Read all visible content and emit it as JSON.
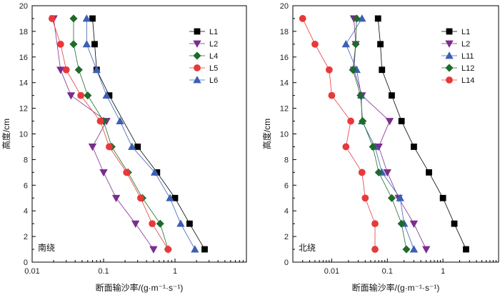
{
  "chart_data": [
    {
      "type": "scatter",
      "panel_label": "南绕",
      "xlabel": "断面输沙率/(g·m⁻¹·s⁻¹)",
      "ylabel": "高度/cm",
      "xscale": "log",
      "xlim": [
        0.01,
        10
      ],
      "ylim": [
        0,
        20
      ],
      "xticks": [
        0.01,
        0.1,
        1
      ],
      "xtick_labels": [
        "0.01",
        "0.1",
        "1"
      ],
      "yticks": [
        0,
        2,
        4,
        6,
        8,
        10,
        12,
        14,
        16,
        18,
        20
      ],
      "ytick_labels": [
        "0",
        "2",
        "4",
        "6",
        "8",
        "10",
        "12",
        "14",
        "16",
        "18",
        "20"
      ],
      "legend_position": "top-right",
      "series": [
        {
          "name": "L1",
          "color": "#000000",
          "marker": "square",
          "x": [
            2.6,
            1.6,
            1.0,
            0.56,
            0.3,
            0.12,
            0.08,
            0.075,
            0.07
          ],
          "y": [
            1,
            3,
            5,
            7,
            9,
            13,
            15,
            17,
            19
          ]
        },
        {
          "name": "L2",
          "color": "#7b2d8e",
          "marker": "triangle-down",
          "x": [
            0.5,
            0.28,
            0.15,
            0.1,
            0.07,
            0.11,
            0.035,
            0.025,
            0.02
          ],
          "y": [
            1,
            3,
            5,
            7,
            9,
            11,
            13,
            15,
            19
          ]
        },
        {
          "name": "L4",
          "color": "#1f6b2a",
          "marker": "diamond",
          "x": [
            0.8,
            0.62,
            0.35,
            0.22,
            0.13,
            0.1,
            0.06,
            0.045,
            0.038,
            0.038
          ],
          "y": [
            1,
            3,
            5,
            7,
            9,
            11,
            13,
            15,
            17,
            19
          ]
        },
        {
          "name": "L5",
          "color": "#e8393a",
          "marker": "circle",
          "x": [
            0.8,
            0.48,
            0.33,
            0.21,
            0.12,
            0.09,
            0.048,
            0.03,
            0.025,
            0.019
          ],
          "y": [
            1,
            3,
            5,
            7,
            9,
            11,
            13,
            15,
            17,
            19
          ]
        },
        {
          "name": "L6",
          "color": "#3c5fb3",
          "marker": "triangle-up",
          "x": [
            1.9,
            1.2,
            0.85,
            0.52,
            0.25,
            0.17,
            0.11,
            0.08,
            0.058,
            0.058
          ],
          "y": [
            1,
            3,
            5,
            7,
            9,
            11,
            13,
            15,
            17,
            19
          ]
        }
      ]
    },
    {
      "type": "scatter",
      "panel_label": "北绕",
      "xlabel": "断面输沙率/(g·m⁻¹·s⁻¹)",
      "ylabel": "高度/cm",
      "xscale": "log",
      "xlim": [
        0.002,
        10
      ],
      "ylim": [
        0,
        20
      ],
      "xticks": [
        0.01,
        0.1,
        1
      ],
      "xtick_labels": [
        "0.01",
        "0.1",
        "1"
      ],
      "yticks": [
        0,
        2,
        4,
        6,
        8,
        10,
        12,
        14,
        16,
        18,
        20
      ],
      "ytick_labels": [
        "0",
        "2",
        "4",
        "6",
        "8",
        "10",
        "12",
        "14",
        "16",
        "18",
        "20"
      ],
      "legend_position": "top-right",
      "series": [
        {
          "name": "L1",
          "color": "#000000",
          "marker": "square",
          "x": [
            2.6,
            1.6,
            1.0,
            0.56,
            0.3,
            0.18,
            0.12,
            0.08,
            0.075,
            0.068
          ],
          "y": [
            1,
            3,
            5,
            7,
            9,
            11,
            13,
            15,
            17,
            19
          ]
        },
        {
          "name": "L2",
          "color": "#7b2d8e",
          "marker": "triangle-down",
          "x": [
            0.5,
            0.3,
            0.16,
            0.1,
            0.07,
            0.11,
            0.035,
            0.025,
            0.027,
            0.025
          ],
          "y": [
            1,
            3,
            5,
            7,
            9,
            11,
            13,
            15,
            17,
            19
          ]
        },
        {
          "name": "L11",
          "color": "#3c5fb3",
          "marker": "triangle-up",
          "x": [
            0.3,
            0.2,
            0.17,
            0.08,
            0.06,
            0.035,
            0.034,
            0.028,
            0.018,
            0.035
          ],
          "y": [
            1,
            3,
            5,
            7,
            9,
            11,
            13,
            15,
            17,
            19
          ]
        },
        {
          "name": "L12",
          "color": "#1f6b2a",
          "marker": "diamond",
          "x": [
            0.22,
            0.18,
            0.12,
            0.07,
            0.055,
            0.036,
            0.033,
            0.024,
            0.027,
            0.028
          ],
          "y": [
            1,
            3,
            5,
            7,
            9,
            11,
            13,
            15,
            17,
            19
          ]
        },
        {
          "name": "L14",
          "color": "#e8393a",
          "marker": "circle",
          "x": [
            0.06,
            0.06,
            0.04,
            0.035,
            0.018,
            0.022,
            0.01,
            0.009,
            0.005,
            0.003
          ],
          "y": [
            1,
            3,
            5,
            7,
            9,
            11,
            13,
            15,
            17,
            19
          ]
        }
      ]
    }
  ]
}
